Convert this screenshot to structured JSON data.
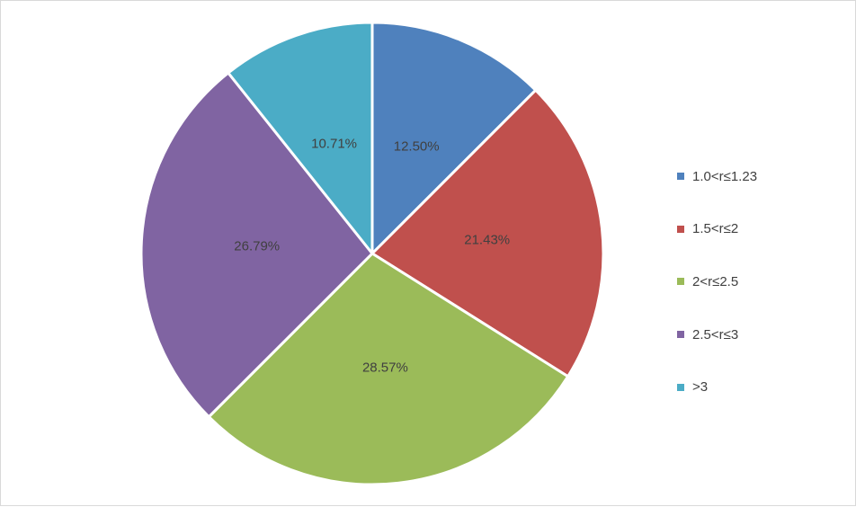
{
  "chart_data": {
    "type": "pie",
    "title": "",
    "legend_position": "right",
    "start_angle_deg": 0,
    "direction": "clockwise",
    "slices": [
      {
        "label": "1.0<r≤1.23",
        "value": 12.5,
        "display": "12.50%",
        "color": "#4F81BD"
      },
      {
        "label": "1.5<r≤2",
        "value": 21.43,
        "display": "21.43%",
        "color": "#C0504D"
      },
      {
        "label": "2<r≤2.5",
        "value": 28.57,
        "display": "28.57%",
        "color": "#9BBB59"
      },
      {
        "label": "2.5<r≤3",
        "value": 26.79,
        "display": "26.79%",
        "color": "#8064A2"
      },
      {
        "label": ">3",
        "value": 10.71,
        "display": "10.71%",
        "color": "#4BACC6"
      }
    ]
  }
}
